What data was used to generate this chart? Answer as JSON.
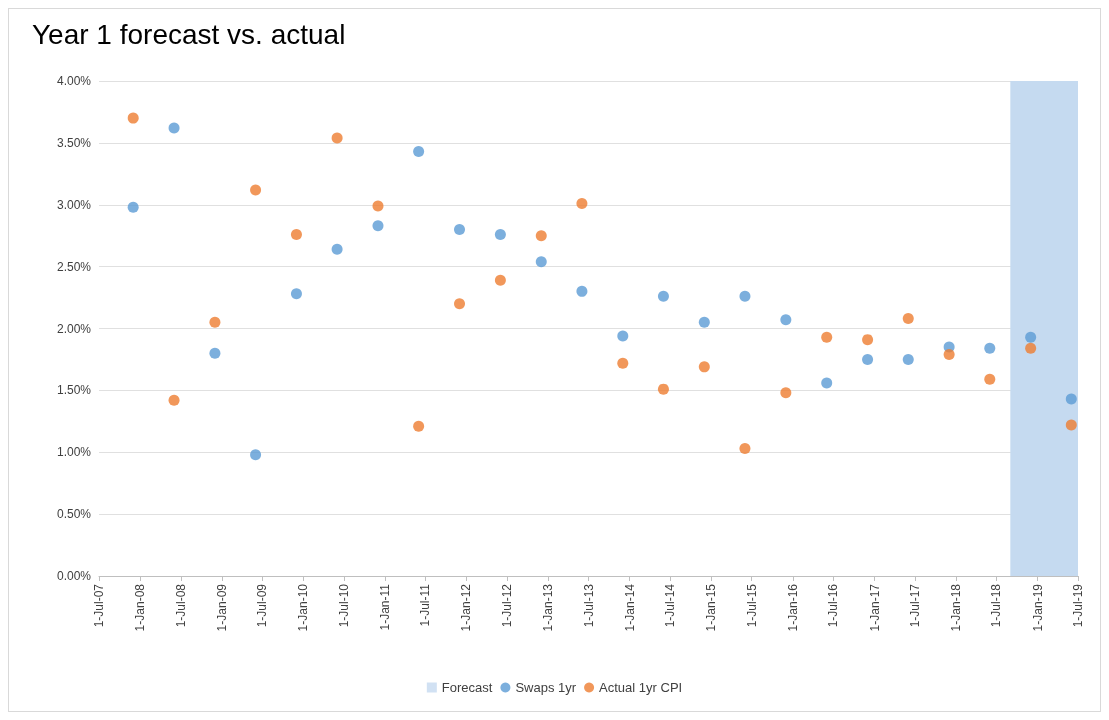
{
  "chart_data": {
    "type": "scatter",
    "title": "Year 1 forecast vs. actual",
    "x": [
      "2007-12-01",
      "2008-06-01",
      "2008-12-01",
      "2009-06-01",
      "2009-12-01",
      "2010-06-01",
      "2010-12-01",
      "2011-06-01",
      "2011-12-01",
      "2012-06-01",
      "2012-12-01",
      "2013-06-01",
      "2013-12-01",
      "2014-06-01",
      "2014-12-01",
      "2015-06-01",
      "2015-12-01",
      "2016-06-01",
      "2016-12-01",
      "2017-06-01",
      "2017-12-01",
      "2018-06-01",
      "2018-12-01",
      "2019-06-01"
    ],
    "series": [
      {
        "name": "Swaps 1yr",
        "color": "#5b9bd5",
        "values": [
          2.98,
          3.62,
          1.8,
          0.98,
          2.28,
          2.64,
          2.83,
          3.43,
          2.8,
          2.76,
          2.54,
          2.3,
          1.94,
          2.26,
          2.05,
          2.26,
          2.07,
          1.56,
          1.75,
          1.75,
          1.85,
          1.84,
          1.93,
          1.43
        ]
      },
      {
        "name": "Actual 1yr CPI",
        "color": "#ed7d31",
        "values": [
          3.7,
          1.42,
          2.05,
          3.12,
          2.76,
          3.54,
          2.99,
          1.21,
          2.2,
          2.39,
          2.75,
          3.01,
          1.72,
          1.51,
          1.69,
          1.03,
          1.48,
          1.93,
          1.91,
          2.08,
          1.79,
          1.59,
          1.84,
          1.22
        ]
      }
    ],
    "bands": [
      {
        "axis": "x",
        "from": "2018-09-01",
        "to": "2019-07-01",
        "label": "Forecast",
        "color": "#c5daf0"
      }
    ],
    "xlim": [
      "2007-07-01",
      "2019-07-01"
    ],
    "xticks": [
      {
        "value": "2007-07-01",
        "label": "1-Jul-07"
      },
      {
        "value": "2008-01-01",
        "label": "1-Jan-08"
      },
      {
        "value": "2008-07-01",
        "label": "1-Jul-08"
      },
      {
        "value": "2009-01-01",
        "label": "1-Jan-09"
      },
      {
        "value": "2009-07-01",
        "label": "1-Jul-09"
      },
      {
        "value": "2010-01-01",
        "label": "1-Jan-10"
      },
      {
        "value": "2010-07-01",
        "label": "1-Jul-10"
      },
      {
        "value": "2011-01-01",
        "label": "1-Jan-11"
      },
      {
        "value": "2011-07-01",
        "label": "1-Jul-11"
      },
      {
        "value": "2012-01-01",
        "label": "1-Jan-12"
      },
      {
        "value": "2012-07-01",
        "label": "1-Jul-12"
      },
      {
        "value": "2013-01-01",
        "label": "1-Jan-13"
      },
      {
        "value": "2013-07-01",
        "label": "1-Jul-13"
      },
      {
        "value": "2014-01-01",
        "label": "1-Jan-14"
      },
      {
        "value": "2014-07-01",
        "label": "1-Jul-14"
      },
      {
        "value": "2015-01-01",
        "label": "1-Jan-15"
      },
      {
        "value": "2015-07-01",
        "label": "1-Jul-15"
      },
      {
        "value": "2016-01-01",
        "label": "1-Jan-16"
      },
      {
        "value": "2016-07-01",
        "label": "1-Jul-16"
      },
      {
        "value": "2017-01-01",
        "label": "1-Jan-17"
      },
      {
        "value": "2017-07-01",
        "label": "1-Jul-17"
      },
      {
        "value": "2018-01-01",
        "label": "1-Jan-18"
      },
      {
        "value": "2018-07-01",
        "label": "1-Jul-18"
      },
      {
        "value": "2019-01-01",
        "label": "1-Jan-19"
      },
      {
        "value": "2019-07-01",
        "label": "1-Jul-19"
      }
    ],
    "ylim": [
      0,
      4
    ],
    "yticks": [
      {
        "value": 0,
        "label": "0.00%"
      },
      {
        "value": 0.5,
        "label": "0.50%"
      },
      {
        "value": 1,
        "label": "1.00%"
      },
      {
        "value": 1.5,
        "label": "1.50%"
      },
      {
        "value": 2,
        "label": "2.00%"
      },
      {
        "value": 2.5,
        "label": "2.50%"
      },
      {
        "value": 3,
        "label": "3.00%"
      },
      {
        "value": 3.5,
        "label": "3.50%"
      },
      {
        "value": 4,
        "label": "4.00%"
      }
    ],
    "grid": "y",
    "legend": "bottom",
    "marker": "circle"
  }
}
